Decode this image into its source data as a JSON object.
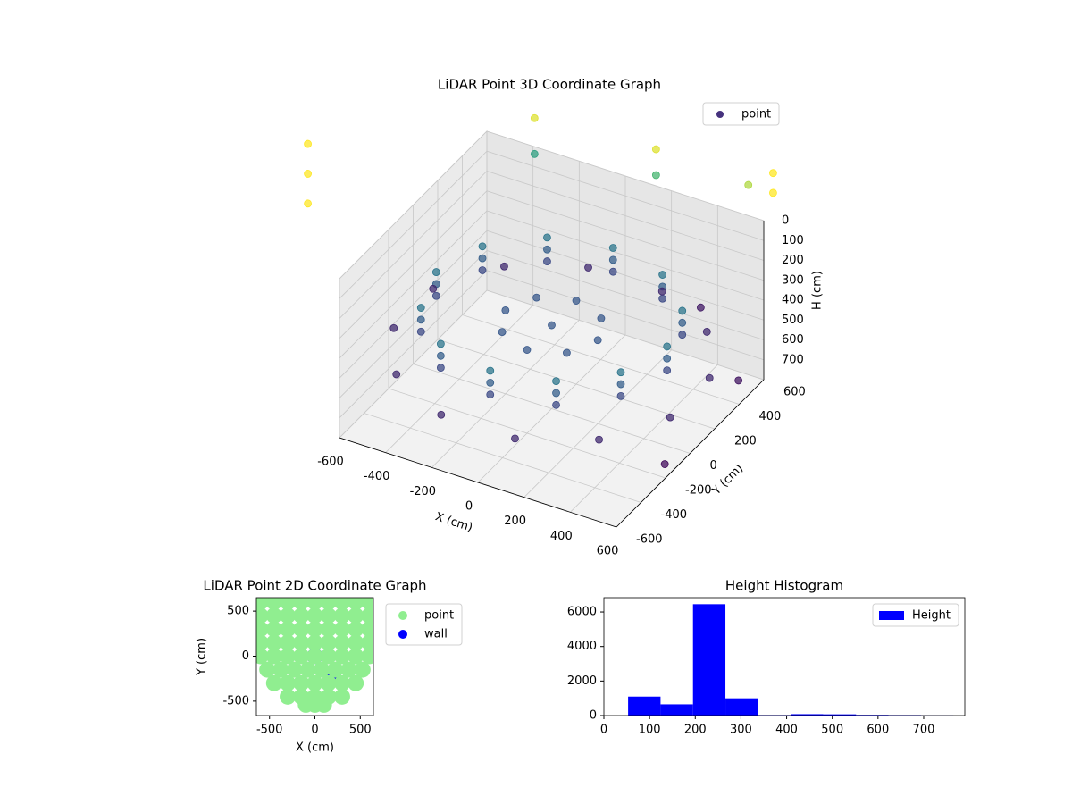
{
  "chart_data": [
    {
      "type": "scatter3d",
      "title": "LiDAR Point 3D Coordinate Graph",
      "xlabel": "X (cm)",
      "ylabel": "Y (cm)",
      "zlabel": "H (cm)",
      "xlim": [
        -600,
        600
      ],
      "ylim": [
        -600,
        600
      ],
      "zlim": [
        800,
        0
      ],
      "xticks": [
        -600,
        -400,
        -200,
        0,
        200,
        400,
        600
      ],
      "yticks": [
        -600,
        -400,
        -200,
        0,
        200,
        400,
        600
      ],
      "zticks": [
        0,
        100,
        200,
        300,
        400,
        500,
        600,
        700
      ],
      "cmap": "viridis",
      "grid": true,
      "legend": "upper right",
      "series": [
        {
          "name": "point",
          "color": "#46327e",
          "x": [
            500,
            433,
            250,
            0,
            -250,
            -433,
            -500,
            -433,
            -250,
            0,
            250,
            433,
            500,
            433,
            250,
            0,
            -250,
            -433,
            -500,
            -433,
            -250,
            0,
            250,
            433,
            500,
            433,
            250,
            0,
            -250,
            -433,
            -500,
            -433,
            -250,
            0,
            250,
            433,
            0,
            200,
            0,
            -200,
            0,
            140,
            -140,
            140,
            -140,
            599,
            439,
            160,
            -160,
            -439,
            -599,
            -599,
            -439,
            -160,
            160,
            439,
            599,
            650,
            650,
            300,
            -950,
            -950,
            -950,
            -500,
            -500,
            0,
            0,
            400,
            800,
            800
          ],
          "y": [
            0,
            250,
            433,
            500,
            433,
            250,
            0,
            -250,
            -433,
            -500,
            -433,
            -250,
            0,
            250,
            433,
            500,
            433,
            250,
            0,
            -250,
            -433,
            -500,
            -433,
            -250,
            0,
            250,
            433,
            500,
            433,
            250,
            0,
            -250,
            -433,
            -500,
            -433,
            -250,
            0,
            0,
            200,
            0,
            -200,
            140,
            -140,
            -140,
            140,
            160,
            439,
            599,
            599,
            439,
            160,
            -160,
            -439,
            -599,
            -599,
            -439,
            -160,
            -300,
            300,
            650,
            -200,
            -200,
            -200,
            800,
            800,
            850,
            850,
            850,
            300,
            300
          ],
          "h": [
            300,
            300,
            300,
            300,
            300,
            300,
            300,
            300,
            300,
            300,
            300,
            300,
            360,
            360,
            360,
            360,
            360,
            360,
            360,
            360,
            360,
            360,
            360,
            360,
            420,
            420,
            420,
            420,
            420,
            420,
            420,
            420,
            420,
            420,
            420,
            420,
            380,
            380,
            380,
            380,
            380,
            380,
            380,
            380,
            380,
            520,
            520,
            520,
            520,
            520,
            520,
            520,
            520,
            520,
            520,
            520,
            520,
            650,
            600,
            580,
            -300,
            -150,
            0,
            20,
            200,
            20,
            150,
            50,
            -500,
            -400
          ]
        }
      ]
    },
    {
      "type": "scatter",
      "title": "LiDAR Point 2D Coordinate Graph",
      "xlabel": "X (cm)",
      "ylabel": "Y (cm)",
      "xlim": [
        -645,
        645
      ],
      "ylim": [
        -660,
        650
      ],
      "xticks": [
        -500,
        0,
        500
      ],
      "yticks": [
        -500,
        0,
        500
      ],
      "legend": "outside upper right",
      "series": [
        {
          "name": "wall",
          "color": "#0000ff",
          "x": [
            0,
            200
          ],
          "y": [
            0,
            -200
          ]
        },
        {
          "name": "point",
          "color": "#90ee90",
          "x": [
            -600,
            -450,
            -300,
            -150,
            0,
            150,
            300,
            450,
            600,
            -600,
            -450,
            -300,
            -150,
            0,
            150,
            300,
            450,
            600,
            -600,
            -450,
            -300,
            -150,
            0,
            150,
            300,
            450,
            600,
            -600,
            -450,
            -300,
            -150,
            0,
            150,
            300,
            450,
            600,
            -600,
            -450,
            -300,
            -150,
            0,
            150,
            300,
            450,
            600,
            -525,
            -375,
            -225,
            -75,
            75,
            225,
            375,
            525,
            -450,
            -300,
            -150,
            0,
            150,
            300,
            450,
            -300,
            -150,
            0,
            150,
            300,
            -100,
            0,
            100
          ],
          "y": [
            600,
            600,
            600,
            600,
            600,
            600,
            600,
            600,
            600,
            450,
            450,
            450,
            450,
            450,
            450,
            450,
            450,
            450,
            300,
            300,
            300,
            300,
            300,
            300,
            300,
            300,
            300,
            150,
            150,
            150,
            150,
            150,
            150,
            150,
            150,
            150,
            0,
            0,
            0,
            0,
            0,
            0,
            0,
            0,
            0,
            -150,
            -150,
            -150,
            -150,
            -150,
            -150,
            -150,
            -150,
            -300,
            -300,
            -300,
            -300,
            -300,
            -300,
            -300,
            -450,
            -450,
            -450,
            -450,
            -450,
            -540,
            -540,
            -540
          ]
        }
      ]
    },
    {
      "type": "histogram",
      "title": "Height Histogram",
      "name": "Height",
      "color": "#0000ff",
      "bins": [
        53,
        124,
        195,
        266,
        338,
        409,
        480,
        552,
        623,
        694,
        765
      ],
      "counts": [
        1100,
        650,
        6450,
        1000,
        30,
        80,
        70,
        40,
        30,
        10
      ],
      "xlim": [
        0,
        790
      ],
      "ylim": [
        0,
        6830
      ],
      "xticks": [
        0,
        100,
        200,
        300,
        400,
        500,
        600,
        700
      ],
      "yticks": [
        0,
        2000,
        4000,
        6000
      ],
      "legend": "upper right"
    }
  ]
}
